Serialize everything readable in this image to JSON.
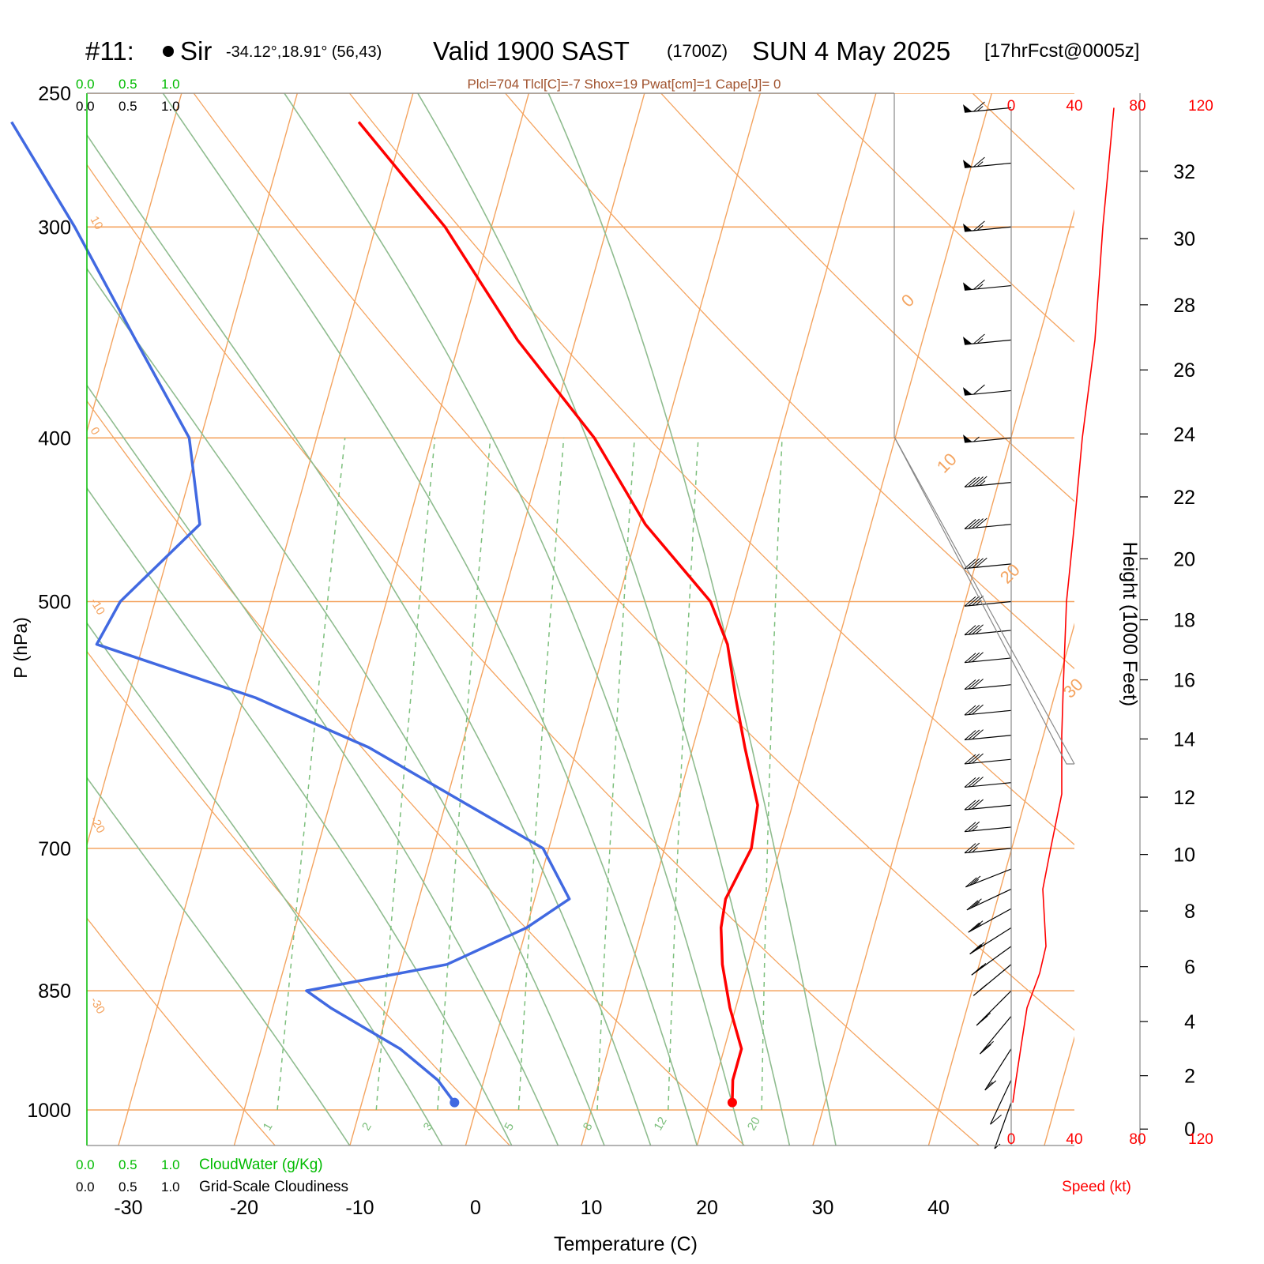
{
  "header": {
    "station_id": "#11:",
    "station_name": "Sir",
    "coords": "-34.12°,18.91° (56,43)",
    "valid_main": "Valid 1900 SAST",
    "valid_z": "(1700Z)",
    "valid_date": "SUN 4 May 2025",
    "forecast": "[17hrFcst@0005z]",
    "indices": "Plcl=704 Tlcl[C]=-7 Shox=19 Pwat[cm]=1 Cape[J]= 0"
  },
  "colors": {
    "temperature": "#ff0000",
    "dewpoint": "#4169e1",
    "isotherm": "#f4a460",
    "dry_adiabat": "#f4a460",
    "moist_adiabat": "#8fbc8f",
    "mixing_ratio": "#7cbf7c",
    "cloud_scale": "#00bb00",
    "indices_text": "#a0522d"
  },
  "chart_data": {
    "type": "line",
    "title": "Valid 1900 SAST (1700Z) SUN 4 May 2025",
    "xlabel": "Temperature (C)",
    "ylabel": "P (hPa)",
    "y2label": "Height (1000 Feet)",
    "xlim": [
      -30,
      40
    ],
    "ylim": [
      1000,
      250
    ],
    "y_scale": "log",
    "x_ticks": [
      -30,
      -20,
      -10,
      0,
      10,
      20,
      30,
      40
    ],
    "pressure_levels": [
      250,
      300,
      400,
      500,
      700,
      850,
      1000
    ],
    "height_ticks": [
      0,
      2,
      4,
      6,
      8,
      10,
      12,
      14,
      16,
      18,
      20,
      22,
      24,
      26,
      28,
      30,
      32
    ],
    "isotherm_labels": [
      "10",
      "0",
      "-10",
      "-20",
      "-30"
    ],
    "isotherm_labels_right": [
      "0",
      "10",
      "20",
      "30"
    ],
    "mixing_ratio_labels": [
      "1",
      "2",
      "3",
      "5",
      "8",
      "12",
      "20"
    ],
    "series": [
      {
        "name": "Temperature",
        "color": "#ff0000",
        "points": [
          [
            22.0,
            990
          ],
          [
            21.5,
            960
          ],
          [
            21.5,
            920
          ],
          [
            19.5,
            870
          ],
          [
            17.8,
            820
          ],
          [
            16.8,
            780
          ],
          [
            16.5,
            750
          ],
          [
            17.5,
            700
          ],
          [
            17.0,
            660
          ],
          [
            14.5,
            610
          ],
          [
            12.5,
            570
          ],
          [
            10.5,
            530
          ],
          [
            8.0,
            500
          ],
          [
            0.5,
            450
          ],
          [
            -6,
            400
          ],
          [
            -15,
            350
          ],
          [
            -24,
            300
          ],
          [
            -34,
            260
          ]
        ]
      },
      {
        "name": "Dewpoint",
        "color": "#4169e1",
        "points": [
          [
            -2.0,
            990
          ],
          [
            -4,
            960
          ],
          [
            -8,
            920
          ],
          [
            -15,
            870
          ],
          [
            -17.5,
            850
          ],
          [
            -6,
            820
          ],
          [
            0,
            780
          ],
          [
            3,
            750
          ],
          [
            -0.5,
            700
          ],
          [
            -8,
            660
          ],
          [
            -18,
            610
          ],
          [
            -29,
            570
          ],
          [
            -44,
            530
          ],
          [
            -43,
            500
          ],
          [
            -38,
            450
          ],
          [
            -41,
            400
          ],
          [
            -48,
            350
          ],
          [
            -56,
            300
          ],
          [
            -64,
            260
          ]
        ]
      }
    ],
    "cloud_scale": {
      "cloudwater_label": "CloudWater (g/Kg)",
      "cloudiness_label": "Grid-Scale Cloudiness",
      "ticks": [
        "0.0",
        "0.5",
        "1.0"
      ]
    },
    "wind_speed_profile": {
      "name": "Speed (kt)",
      "axis_ticks": [
        0,
        40,
        80,
        120
      ],
      "points": [
        [
          1,
          990
        ],
        [
          3,
          960
        ],
        [
          6,
          920
        ],
        [
          10,
          870
        ],
        [
          18,
          830
        ],
        [
          22,
          800
        ],
        [
          20,
          740
        ],
        [
          25,
          700
        ],
        [
          32,
          650
        ],
        [
          32,
          600
        ],
        [
          33,
          560
        ],
        [
          35,
          500
        ],
        [
          40,
          450
        ],
        [
          45,
          400
        ],
        [
          53,
          350
        ],
        [
          58,
          300
        ],
        [
          65,
          255
        ]
      ]
    },
    "wind_barbs": {
      "pressures": [
        990,
        960,
        920,
        880,
        850,
        820,
        800,
        780,
        760,
        740,
        720,
        700,
        680,
        660,
        640,
        620,
        600,
        580,
        560,
        540,
        520,
        500,
        475,
        450,
        425,
        400,
        375,
        350,
        325,
        300,
        275,
        255
      ],
      "speeds_kt": [
        5,
        10,
        15,
        20,
        20,
        25,
        25,
        25,
        25,
        25,
        25,
        25,
        25,
        30,
        30,
        30,
        30,
        30,
        30,
        30,
        35,
        35,
        40,
        40,
        45,
        55,
        60,
        65,
        65,
        65,
        65,
        65
      ]
    }
  }
}
